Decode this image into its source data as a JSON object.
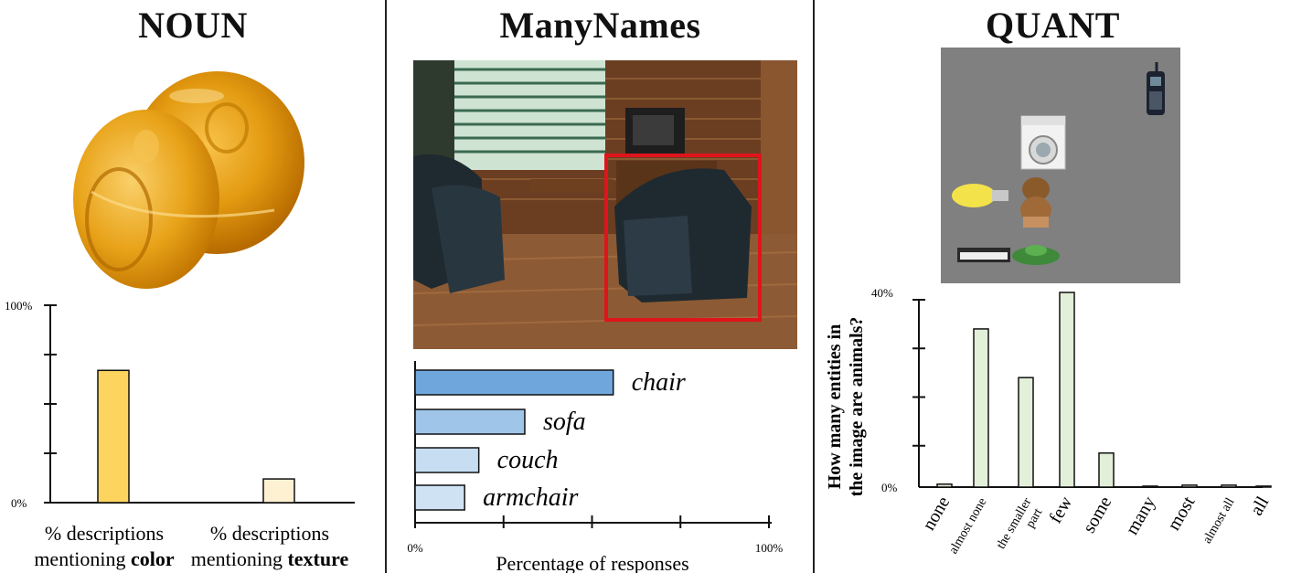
{
  "panels": {
    "noun": {
      "title": "NOUN",
      "chart_data": {
        "type": "bar",
        "categories": [
          "% descriptions mentioning color",
          "% descriptions mentioning texture"
        ],
        "category_lines": [
          [
            "% descriptions",
            "mentioning ",
            "color"
          ],
          [
            "% descriptions",
            "mentioning ",
            "texture"
          ]
        ],
        "values": [
          67,
          12
        ],
        "ylim": [
          0,
          100
        ],
        "ytick_labels": [
          "100%",
          "0%"
        ],
        "bar_colors": [
          "#FDD55E",
          "#FEF1D2"
        ]
      }
    },
    "manynames": {
      "title": "ManyNames",
      "chart_data": {
        "type": "bar",
        "orientation": "horizontal",
        "categories": [
          "chair",
          "sofa",
          "couch",
          "armchair"
        ],
        "values": [
          56,
          31,
          18,
          14
        ],
        "xlim": [
          0,
          100
        ],
        "xtick_labels": [
          "0%",
          "100%"
        ],
        "xlabel": "Percentage of responses",
        "bar_colors": [
          "#6FA7DC",
          "#9FC5E9",
          "#C6DDF2",
          "#CFE2F3"
        ]
      }
    },
    "quant": {
      "title": "QUANT",
      "chart_data": {
        "type": "bar",
        "categories": [
          "none",
          "almost none",
          "the smaller part",
          "few",
          "some",
          "many",
          "most",
          "almost all",
          "all"
        ],
        "category_lines": [
          [
            "none"
          ],
          [
            "almost none"
          ],
          [
            "the smaller",
            "part"
          ],
          [
            "few"
          ],
          [
            "some"
          ],
          [
            "many"
          ],
          [
            "most"
          ],
          [
            "almost all"
          ],
          [
            "all"
          ]
        ],
        "category_sizes": [
          20,
          14,
          14,
          20,
          20,
          20,
          20,
          14,
          20
        ],
        "values": [
          0.6,
          32.5,
          22.5,
          40,
          7,
          0.2,
          0.4,
          0.4,
          0.2
        ],
        "ylim": [
          0,
          40
        ],
        "ytick_labels": [
          "40%",
          "0%"
        ],
        "ylabel": [
          "How many entities in",
          "the image are animals?"
        ],
        "bar_color": "#E2EFD9"
      }
    }
  }
}
